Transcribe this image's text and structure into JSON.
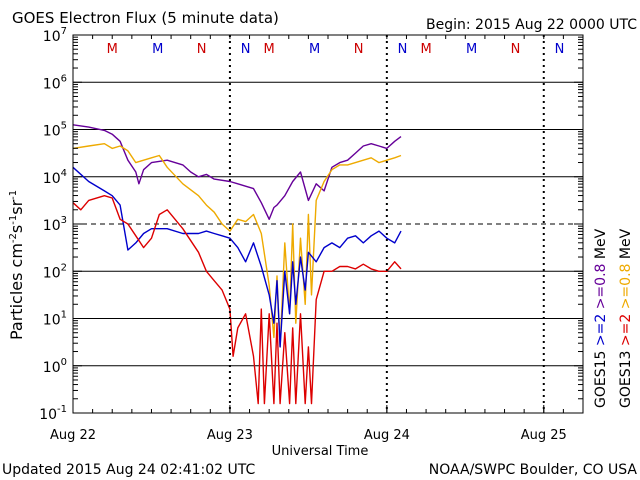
{
  "chart_data": {
    "type": "line",
    "title": "GOES Electron Flux (5 minute data)",
    "begin_label": "Begin: 2015 Aug 22 0000 UTC",
    "xlabel": "Universal Time",
    "ylabel_main": "Particles cm",
    "ylabel_sup1": "-2",
    "ylabel_mid1": "s",
    "ylabel_sup2": "-1",
    "ylabel_mid2": "sr",
    "ylabel_sup3": "-1",
    "updated": "Updated 2015 Aug 24 02:41:02 UTC",
    "credit": "NOAA/SWPC Boulder, CO USA",
    "x_unit": "days since 2015 Aug 22 00:00 UTC",
    "xlim": [
      0,
      3.25
    ],
    "ylim_log10": [
      -1,
      7
    ],
    "x_ticks": [
      {
        "x": 0,
        "label": "Aug 22"
      },
      {
        "x": 1,
        "label": "Aug 23"
      },
      {
        "x": 2,
        "label": "Aug 24"
      },
      {
        "x": 3,
        "label": "Aug 25"
      }
    ],
    "y_ticks": [
      {
        "exp": -1,
        "base": "10",
        "sup": "-1"
      },
      {
        "exp": 0,
        "base": "10",
        "sup": "0"
      },
      {
        "exp": 1,
        "base": "10",
        "sup": "1"
      },
      {
        "exp": 2,
        "base": "10",
        "sup": "2"
      },
      {
        "exp": 3,
        "base": "10",
        "sup": "3"
      },
      {
        "exp": 4,
        "base": "10",
        "sup": "4"
      },
      {
        "exp": 5,
        "base": "10",
        "sup": "5"
      },
      {
        "exp": 6,
        "base": "10",
        "sup": "6"
      },
      {
        "exp": 7,
        "base": "10",
        "sup": "7"
      }
    ],
    "threshold_exp": 3,
    "noon_markers": [
      {
        "x": 0.25,
        "label": "M",
        "color": "#cc0000"
      },
      {
        "x": 0.54,
        "label": "M",
        "color": "#0000cc"
      },
      {
        "x": 1.25,
        "label": "M",
        "color": "#cc0000"
      },
      {
        "x": 1.54,
        "label": "M",
        "color": "#0000cc"
      },
      {
        "x": 2.25,
        "label": "M",
        "color": "#cc0000"
      },
      {
        "x": 2.54,
        "label": "M",
        "color": "#0000cc"
      }
    ],
    "midnight_markers": [
      {
        "x": 0.82,
        "label": "N",
        "color": "#cc0000"
      },
      {
        "x": 1.1,
        "label": "N",
        "color": "#0000cc"
      },
      {
        "x": 1.82,
        "label": "N",
        "color": "#cc0000"
      },
      {
        "x": 2.1,
        "label": "N",
        "color": "#0000cc"
      },
      {
        "x": 2.82,
        "label": "N",
        "color": "#cc0000"
      },
      {
        "x": 3.1,
        "label": "N",
        "color": "#0000cc"
      }
    ],
    "legend_right": [
      {
        "prefix": "GOES15",
        "p1": ">=2",
        "p2": ">=0.8",
        "unit": "MeV",
        "c1": "#0000cc",
        "c2": "#660099"
      },
      {
        "prefix": "GOES13",
        "p1": ">=2",
        "p2": ">=0.8",
        "unit": "MeV",
        "c1": "#dd0000",
        "c2": "#eeaa00"
      }
    ],
    "series": [
      {
        "name": "GOES15 >=0.8 MeV",
        "color": "#660099",
        "width": 1.4,
        "x": [
          0,
          0.1,
          0.2,
          0.25,
          0.3,
          0.35,
          0.4,
          0.42,
          0.45,
          0.5,
          0.6,
          0.7,
          0.75,
          0.8,
          0.85,
          0.9,
          1.0,
          1.05,
          1.1,
          1.15,
          1.2,
          1.25,
          1.28,
          1.3,
          1.35,
          1.4,
          1.45,
          1.5,
          1.55,
          1.6,
          1.65,
          1.7,
          1.75,
          1.8,
          1.85,
          1.9,
          1.95,
          2.0,
          2.05,
          2.09
        ],
        "y": [
          5.1,
          5.05,
          4.98,
          4.9,
          4.75,
          4.35,
          4.1,
          3.85,
          4.15,
          4.3,
          4.35,
          4.25,
          4.1,
          4.0,
          4.05,
          3.95,
          3.9,
          3.85,
          3.8,
          3.75,
          3.45,
          3.1,
          3.35,
          3.4,
          3.6,
          3.9,
          4.1,
          3.5,
          3.85,
          3.7,
          4.2,
          4.3,
          4.35,
          4.5,
          4.65,
          4.7,
          4.65,
          4.6,
          4.75,
          4.85
        ]
      },
      {
        "name": "GOES13 >=0.8 MeV",
        "color": "#eeaa00",
        "width": 1.4,
        "x": [
          0,
          0.1,
          0.2,
          0.25,
          0.3,
          0.35,
          0.4,
          0.45,
          0.5,
          0.55,
          0.6,
          0.7,
          0.8,
          0.85,
          0.9,
          0.95,
          1.0,
          1.05,
          1.1,
          1.15,
          1.2,
          1.25,
          1.28,
          1.3,
          1.32,
          1.35,
          1.38,
          1.4,
          1.42,
          1.45,
          1.48,
          1.5,
          1.52,
          1.55,
          1.6,
          1.65,
          1.7,
          1.75,
          1.8,
          1.85,
          1.9,
          1.95,
          2.0,
          2.05,
          2.09
        ],
        "y": [
          4.6,
          4.65,
          4.7,
          4.6,
          4.65,
          4.55,
          4.3,
          4.35,
          4.4,
          4.45,
          4.2,
          3.85,
          3.6,
          3.4,
          3.25,
          3.0,
          2.85,
          3.1,
          3.05,
          3.2,
          2.8,
          1.7,
          0.6,
          1.9,
          0.4,
          2.6,
          1.1,
          3.0,
          0.9,
          2.7,
          1.3,
          3.2,
          1.5,
          3.5,
          3.9,
          4.15,
          4.25,
          4.25,
          4.3,
          4.35,
          4.4,
          4.3,
          4.35,
          4.4,
          4.45
        ]
      },
      {
        "name": "GOES15 >=2 MeV",
        "color": "#0000cc",
        "width": 1.4,
        "x": [
          0,
          0.1,
          0.2,
          0.25,
          0.3,
          0.35,
          0.4,
          0.45,
          0.5,
          0.6,
          0.7,
          0.8,
          0.85,
          0.9,
          0.95,
          1.0,
          1.05,
          1.1,
          1.15,
          1.2,
          1.25,
          1.28,
          1.3,
          1.32,
          1.35,
          1.38,
          1.4,
          1.42,
          1.45,
          1.48,
          1.5,
          1.55,
          1.6,
          1.65,
          1.7,
          1.75,
          1.8,
          1.85,
          1.9,
          1.95,
          2.0,
          2.05,
          2.09
        ],
        "y": [
          4.2,
          3.9,
          3.7,
          3.6,
          3.4,
          2.45,
          2.6,
          2.8,
          2.9,
          2.9,
          2.8,
          2.8,
          2.85,
          2.8,
          2.75,
          2.7,
          2.5,
          2.2,
          2.6,
          2.1,
          1.5,
          0.9,
          1.8,
          0.4,
          2.0,
          1.1,
          2.2,
          1.3,
          2.3,
          1.6,
          2.4,
          2.2,
          2.5,
          2.6,
          2.5,
          2.7,
          2.75,
          2.6,
          2.75,
          2.85,
          2.7,
          2.6,
          2.85
        ]
      },
      {
        "name": "GOES13 >=2 MeV",
        "color": "#dd0000",
        "width": 1.4,
        "x": [
          0,
          0.05,
          0.1,
          0.2,
          0.25,
          0.3,
          0.35,
          0.4,
          0.45,
          0.5,
          0.55,
          0.6,
          0.7,
          0.8,
          0.85,
          0.9,
          0.95,
          1.0,
          1.02,
          1.05,
          1.1,
          1.15,
          1.18,
          1.2,
          1.22,
          1.25,
          1.28,
          1.3,
          1.32,
          1.35,
          1.38,
          1.4,
          1.42,
          1.45,
          1.48,
          1.5,
          1.52,
          1.55,
          1.6,
          1.65,
          1.7,
          1.75,
          1.8,
          1.85,
          1.9,
          1.95,
          2.0,
          2.05,
          2.09
        ],
        "y": [
          3.45,
          3.3,
          3.5,
          3.6,
          3.55,
          3.1,
          3.0,
          2.75,
          2.5,
          2.7,
          3.2,
          3.3,
          2.9,
          2.4,
          2.0,
          1.8,
          1.6,
          1.2,
          0.2,
          0.8,
          1.1,
          0.2,
          -0.8,
          1.2,
          -0.8,
          1.1,
          -0.8,
          0.9,
          -0.8,
          0.7,
          -0.8,
          0.8,
          -0.8,
          1.1,
          -0.8,
          0.4,
          -0.8,
          1.4,
          2.0,
          2.0,
          2.1,
          2.1,
          2.05,
          2.15,
          2.05,
          2.0,
          2.0,
          2.2,
          2.05
        ]
      }
    ]
  }
}
